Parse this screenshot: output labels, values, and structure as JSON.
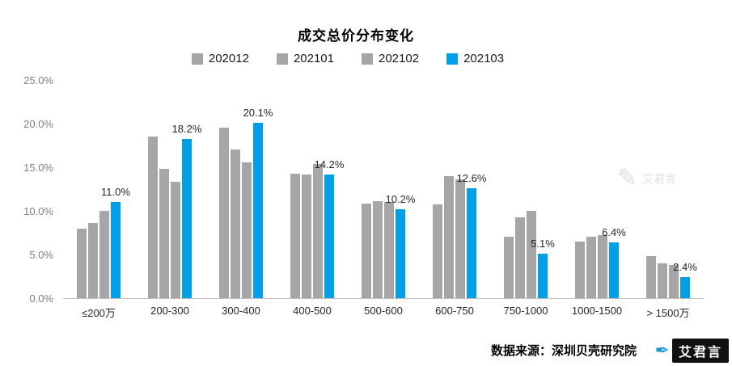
{
  "page": {
    "source": "数据来源：深圳贝壳研究院",
    "brand": "艾君言"
  },
  "icons": {
    "pen": "✒",
    "quill": "✎"
  },
  "colors": {
    "gray": "#a6a6a6",
    "blue": "#00a0e9",
    "axis_line": "#bfbfbf"
  },
  "chart_data": {
    "type": "bar",
    "title": "成交总价分布变化",
    "categories": [
      "≤200万",
      "200-300",
      "300-400",
      "400-500",
      "500-600",
      "600-750",
      "750-1000",
      "1000-1500",
      "> 1500万"
    ],
    "series": [
      {
        "name": "202012",
        "color": "#a6a6a6",
        "values": [
          8.0,
          18.5,
          19.5,
          14.3,
          10.8,
          10.7,
          7.0,
          6.5,
          4.8
        ]
      },
      {
        "name": "202101",
        "color": "#a6a6a6",
        "values": [
          8.6,
          14.8,
          17.0,
          14.2,
          11.1,
          14.0,
          9.3,
          7.0,
          4.0
        ]
      },
      {
        "name": "202102",
        "color": "#a6a6a6",
        "values": [
          10.0,
          13.3,
          15.6,
          15.4,
          11.0,
          13.6,
          10.0,
          7.2,
          3.8
        ]
      },
      {
        "name": "202103",
        "color": "#00a0e9",
        "values": [
          11.0,
          18.2,
          20.1,
          14.2,
          10.2,
          12.6,
          5.1,
          6.4,
          2.4
        ]
      }
    ],
    "data_labels": [
      "11.0%",
      "18.2%",
      "20.1%",
      "14.2%",
      "10.2%",
      "12.6%",
      "5.1%",
      "6.4%",
      "2.4%"
    ],
    "data_label_series": "202103",
    "ylim": [
      0,
      25
    ],
    "yticks": [
      "0.0%",
      "5.0%",
      "10.0%",
      "15.0%",
      "20.0%",
      "25.0%"
    ],
    "xlabel": "",
    "ylabel": "",
    "grid": false,
    "legend_position": "top"
  }
}
